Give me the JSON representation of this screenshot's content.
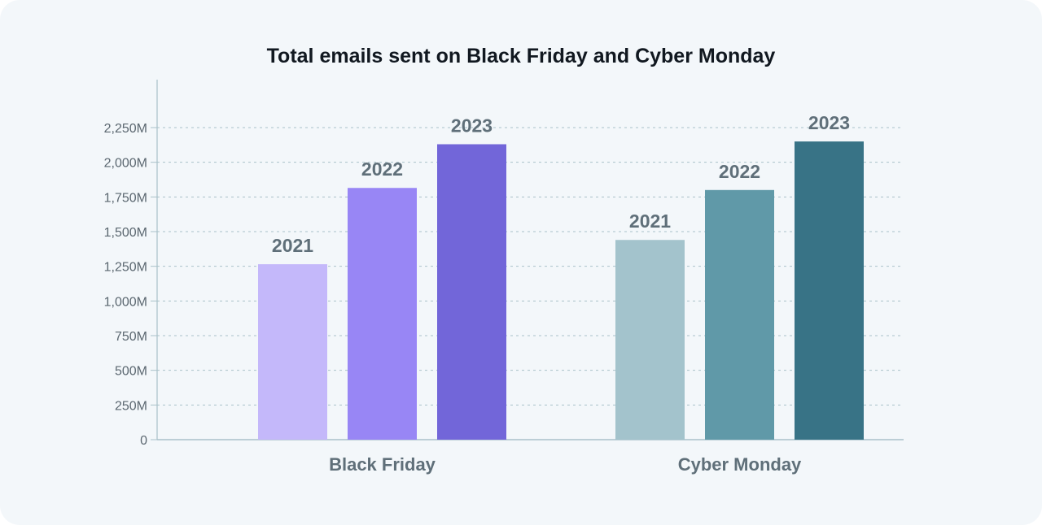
{
  "chart_data": {
    "type": "bar",
    "title": "Total emails sent on Black Friday and Cyber Monday",
    "xlabel": "",
    "ylabel": "",
    "ylim": [
      0,
      2600
    ],
    "yticks": [
      0,
      250,
      500,
      750,
      1000,
      1250,
      1500,
      1750,
      2000,
      2250
    ],
    "ytick_labels": [
      "0",
      "250M",
      "500M",
      "750M",
      "1,000M",
      "1,250M",
      "1,500M",
      "1,750M",
      "2,000M",
      "2,250M"
    ],
    "grid": true,
    "categories": [
      {
        "name": "Black Friday",
        "bars": [
          {
            "label": "2021",
            "value": 1265,
            "color": "#c4b8fa"
          },
          {
            "label": "2022",
            "value": 1815,
            "color": "#9886f5"
          },
          {
            "label": "2023",
            "value": 2130,
            "color": "#7266d9"
          }
        ]
      },
      {
        "name": "Cyber Monday",
        "bars": [
          {
            "label": "2021",
            "value": 1440,
            "color": "#a3c3cc"
          },
          {
            "label": "2022",
            "value": 1800,
            "color": "#6099a8"
          },
          {
            "label": "2023",
            "value": 2150,
            "color": "#387386"
          }
        ]
      }
    ],
    "colors": {
      "grid": "#a9c1c9",
      "axis": "#a9c1c9",
      "background": "#f3f7fa"
    }
  }
}
